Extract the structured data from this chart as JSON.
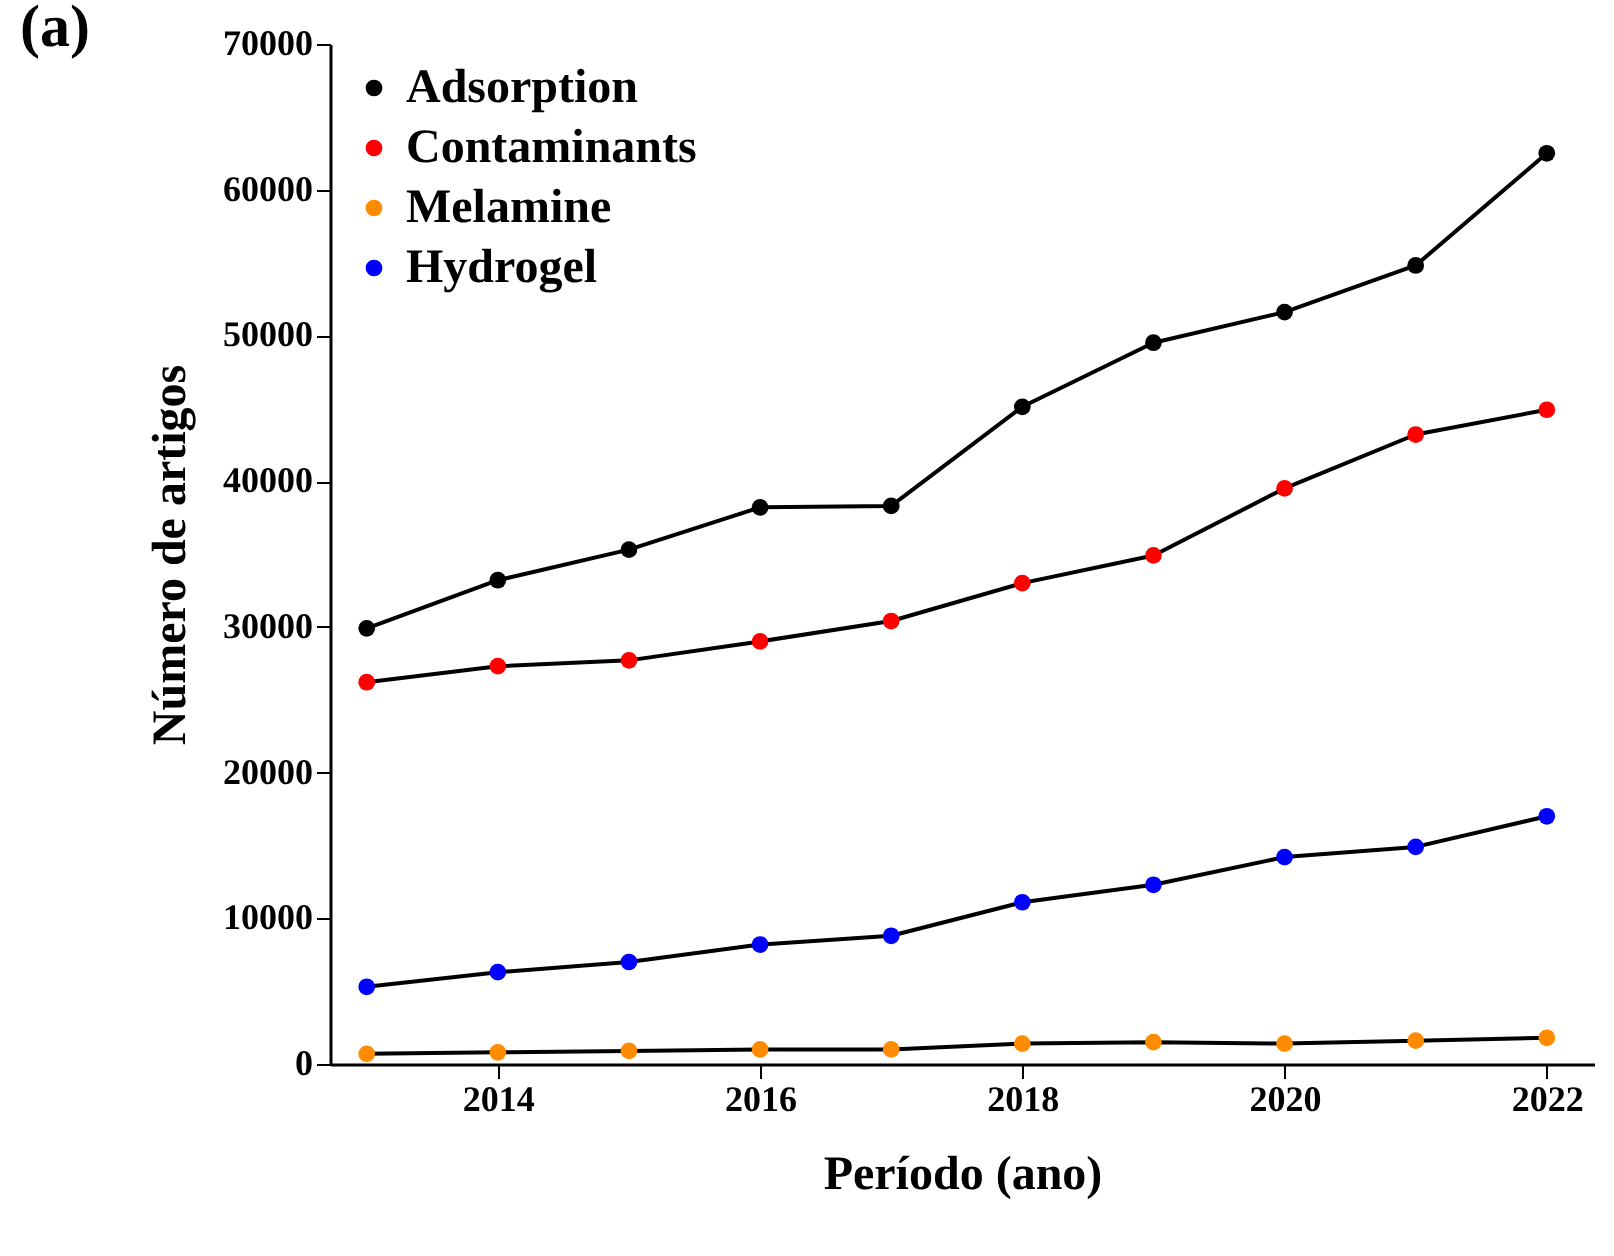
{
  "chart_data": {
    "type": "line",
    "xlabel": "Período (ano)",
    "ylabel": "Número de artigos",
    "annotations": [
      "(a)"
    ],
    "x": [
      2013,
      2014,
      2015,
      2016,
      2017,
      2018,
      2019,
      2020,
      2021,
      2022
    ],
    "series": [
      {
        "name": "Adsorption",
        "color": "#000000",
        "values": [
          29900,
          33200,
          35300,
          38200,
          38300,
          45100,
          49500,
          51600,
          54800,
          62500
        ]
      },
      {
        "name": "Contaminants",
        "color": "#ff0000",
        "values": [
          26200,
          27300,
          27700,
          29000,
          30400,
          33000,
          34900,
          39500,
          43200,
          44900
        ]
      },
      {
        "name": "Melamine",
        "color": "#ff8c00",
        "values": [
          700,
          800,
          900,
          1000,
          1000,
          1400,
          1500,
          1400,
          1600,
          1800
        ]
      },
      {
        "name": "Hydrogel",
        "color": "#0000ff",
        "values": [
          5300,
          6300,
          7000,
          8200,
          8800,
          11100,
          12300,
          14200,
          14900,
          17000
        ]
      }
    ],
    "xlim": [
      2012.72,
      2022.36
    ],
    "xticks": [
      2014,
      2016,
      2018,
      2020,
      2022
    ],
    "ylim": [
      0,
      70000
    ],
    "yticks": [
      0,
      10000,
      20000,
      30000,
      40000,
      50000,
      60000,
      70000
    ],
    "grid": false,
    "legend": "top left",
    "marker": "circle",
    "line_style": "solid"
  }
}
